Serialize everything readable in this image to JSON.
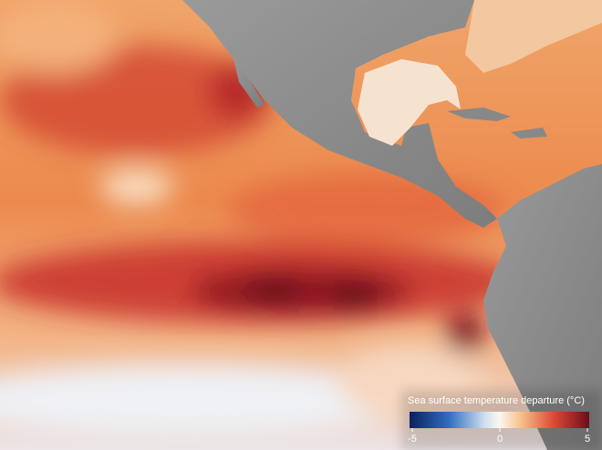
{
  "colorbar": {
    "title": "Sea surface temperature departure (°C)",
    "lim": [
      -5,
      5
    ],
    "ticks": [
      -5,
      0,
      5
    ]
  }
}
